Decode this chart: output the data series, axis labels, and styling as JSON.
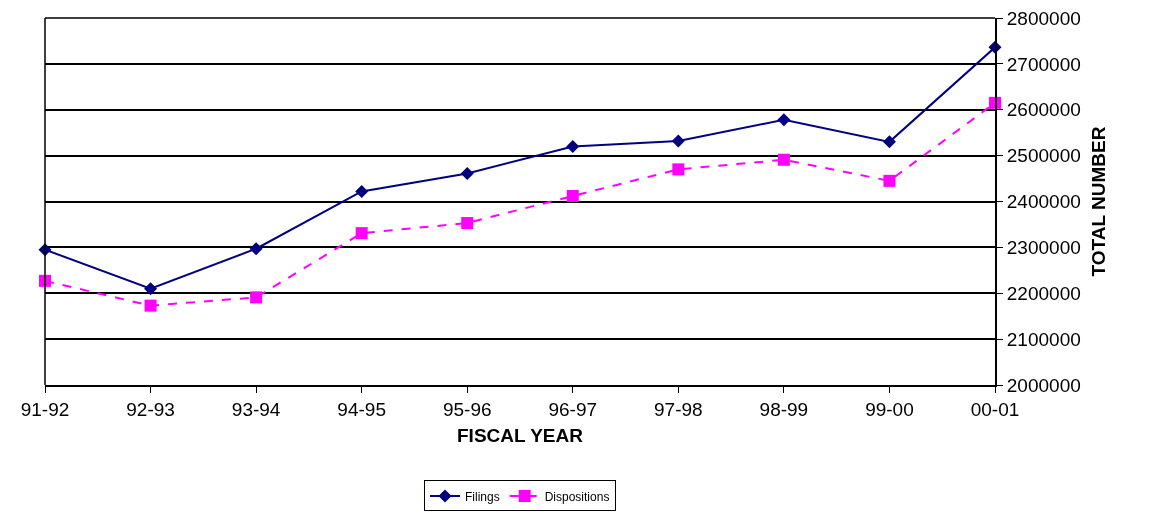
{
  "chart_data": {
    "type": "line",
    "xlabel": "FISCAL YEAR",
    "ylabel": "TOTAL NUMBER",
    "categories": [
      "91-92",
      "92-93",
      "93-94",
      "94-95",
      "95-96",
      "96-97",
      "97-98",
      "98-99",
      "99-00",
      "00-01"
    ],
    "series": [
      {
        "name": "Filings",
        "color": "#000080",
        "marker": "diamond",
        "line_style": "solid",
        "values": [
          2295000,
          2210000,
          2297000,
          2422000,
          2461000,
          2520000,
          2532000,
          2578000,
          2530000,
          2736000
        ]
      },
      {
        "name": "Dispositions",
        "color": "#ff00ff",
        "marker": "square",
        "line_style": "dashed",
        "values": [
          2227000,
          2173000,
          2191000,
          2331000,
          2353000,
          2412000,
          2470000,
          2491000,
          2445000,
          2615000
        ]
      }
    ],
    "ylim": [
      2000000,
      2800000
    ],
    "yticks": [
      2000000,
      2100000,
      2200000,
      2300000,
      2400000,
      2500000,
      2600000,
      2700000,
      2800000
    ],
    "grid": "y",
    "legend": "bottom"
  }
}
